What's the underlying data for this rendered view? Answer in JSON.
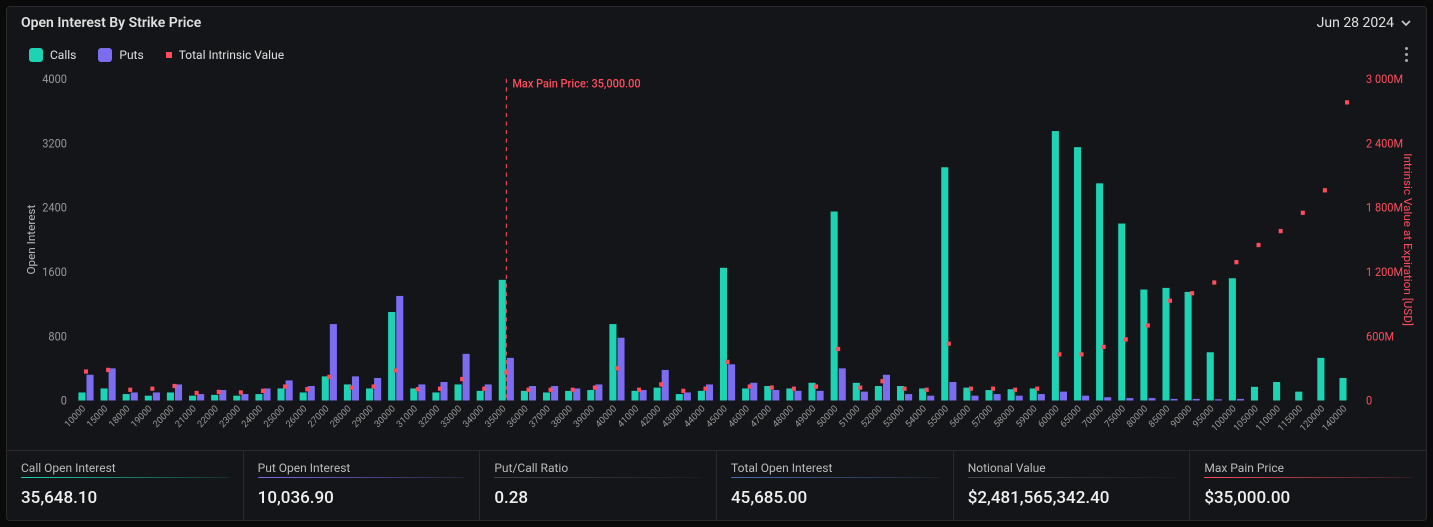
{
  "panel": {
    "title": "Open Interest By Strike Price",
    "date": "Jun 28 2024"
  },
  "legend": {
    "calls": {
      "label": "Calls",
      "color": "#1ed2b4"
    },
    "puts": {
      "label": "Puts",
      "color": "#7b6cf0"
    },
    "intrinsic": {
      "label": "Total Intrinsic Value",
      "color": "#ff4d5e"
    }
  },
  "chart": {
    "y_left": {
      "label": "Open Interest",
      "min": 0,
      "max": 4000,
      "step": 800
    },
    "y_right": {
      "label": "Intrinsic Value at Expiration [USD]",
      "min": 0,
      "max": 3000,
      "step": 600,
      "suffix": "M"
    },
    "max_pain": {
      "label": "Max Pain Price: 35,000.00",
      "x": "35000"
    },
    "strikes": [
      "10000",
      "15000",
      "18000",
      "19000",
      "20000",
      "21000",
      "22000",
      "23000",
      "24000",
      "25000",
      "26000",
      "27000",
      "28000",
      "29000",
      "30000",
      "31000",
      "32000",
      "33000",
      "34000",
      "35000",
      "36000",
      "37000",
      "38000",
      "39000",
      "40000",
      "41000",
      "42000",
      "43000",
      "44000",
      "45000",
      "46000",
      "47000",
      "48000",
      "49000",
      "50000",
      "51000",
      "52000",
      "53000",
      "54000",
      "55000",
      "56000",
      "57000",
      "58000",
      "59000",
      "60000",
      "65000",
      "70000",
      "75000",
      "80000",
      "85000",
      "90000",
      "95000",
      "100000",
      "105000",
      "110000",
      "115000",
      "120000",
      "140000"
    ],
    "calls_values": [
      100,
      150,
      80,
      60,
      100,
      60,
      70,
      60,
      80,
      150,
      100,
      300,
      200,
      150,
      1100,
      150,
      100,
      200,
      120,
      1500,
      120,
      100,
      120,
      130,
      950,
      120,
      160,
      80,
      120,
      1650,
      150,
      180,
      150,
      220,
      2350,
      220,
      180,
      180,
      150,
      2900,
      160,
      130,
      140,
      150,
      3350,
      3150,
      2700,
      2200,
      1380,
      1400,
      1350,
      600,
      1520,
      170,
      230,
      110,
      530,
      280
    ],
    "puts_values": [
      320,
      400,
      100,
      100,
      200,
      80,
      130,
      80,
      150,
      250,
      180,
      950,
      300,
      280,
      1300,
      200,
      230,
      580,
      200,
      530,
      180,
      180,
      150,
      200,
      780,
      130,
      380,
      100,
      200,
      450,
      220,
      130,
      120,
      120,
      400,
      110,
      320,
      80,
      60,
      230,
      60,
      80,
      60,
      80,
      110,
      60,
      40,
      30,
      30,
      20,
      20,
      15,
      20,
      0,
      0,
      0,
      0,
      0
    ],
    "intrinsic_values": [
      270,
      285,
      100,
      110,
      135,
      70,
      80,
      75,
      90,
      130,
      105,
      220,
      120,
      130,
      280,
      105,
      110,
      200,
      110,
      260,
      100,
      100,
      100,
      120,
      300,
      100,
      150,
      90,
      110,
      360,
      130,
      120,
      110,
      130,
      480,
      120,
      180,
      110,
      100,
      530,
      110,
      110,
      100,
      110,
      430,
      430,
      500,
      570,
      700,
      930,
      1000,
      1100,
      1290,
      1450,
      1580,
      1750,
      1960,
      2780
    ]
  },
  "stats": [
    {
      "label": "Call Open Interest",
      "value": "35,648.10",
      "underline": "linear-gradient(90deg,#1ed2b4,#1ed2b422)"
    },
    {
      "label": "Put Open Interest",
      "value": "10,036.90",
      "underline": "linear-gradient(90deg,#7b6cf0,#7b6cf022)"
    },
    {
      "label": "Put/Call Ratio",
      "value": "0.28",
      "underline": "linear-gradient(90deg,#444,#44444422)"
    },
    {
      "label": "Total Open Interest",
      "value": "45,685.00",
      "underline": "linear-gradient(90deg,#4a6fb0,#4a6fb022)"
    },
    {
      "label": "Notional Value",
      "value": "$2,481,565,342.40",
      "underline": "linear-gradient(90deg,#444,#44444422)"
    },
    {
      "label": "Max Pain Price",
      "value": "$35,000.00",
      "underline": "linear-gradient(90deg,#ff4d5e,#ff4d5e22)"
    }
  ]
}
